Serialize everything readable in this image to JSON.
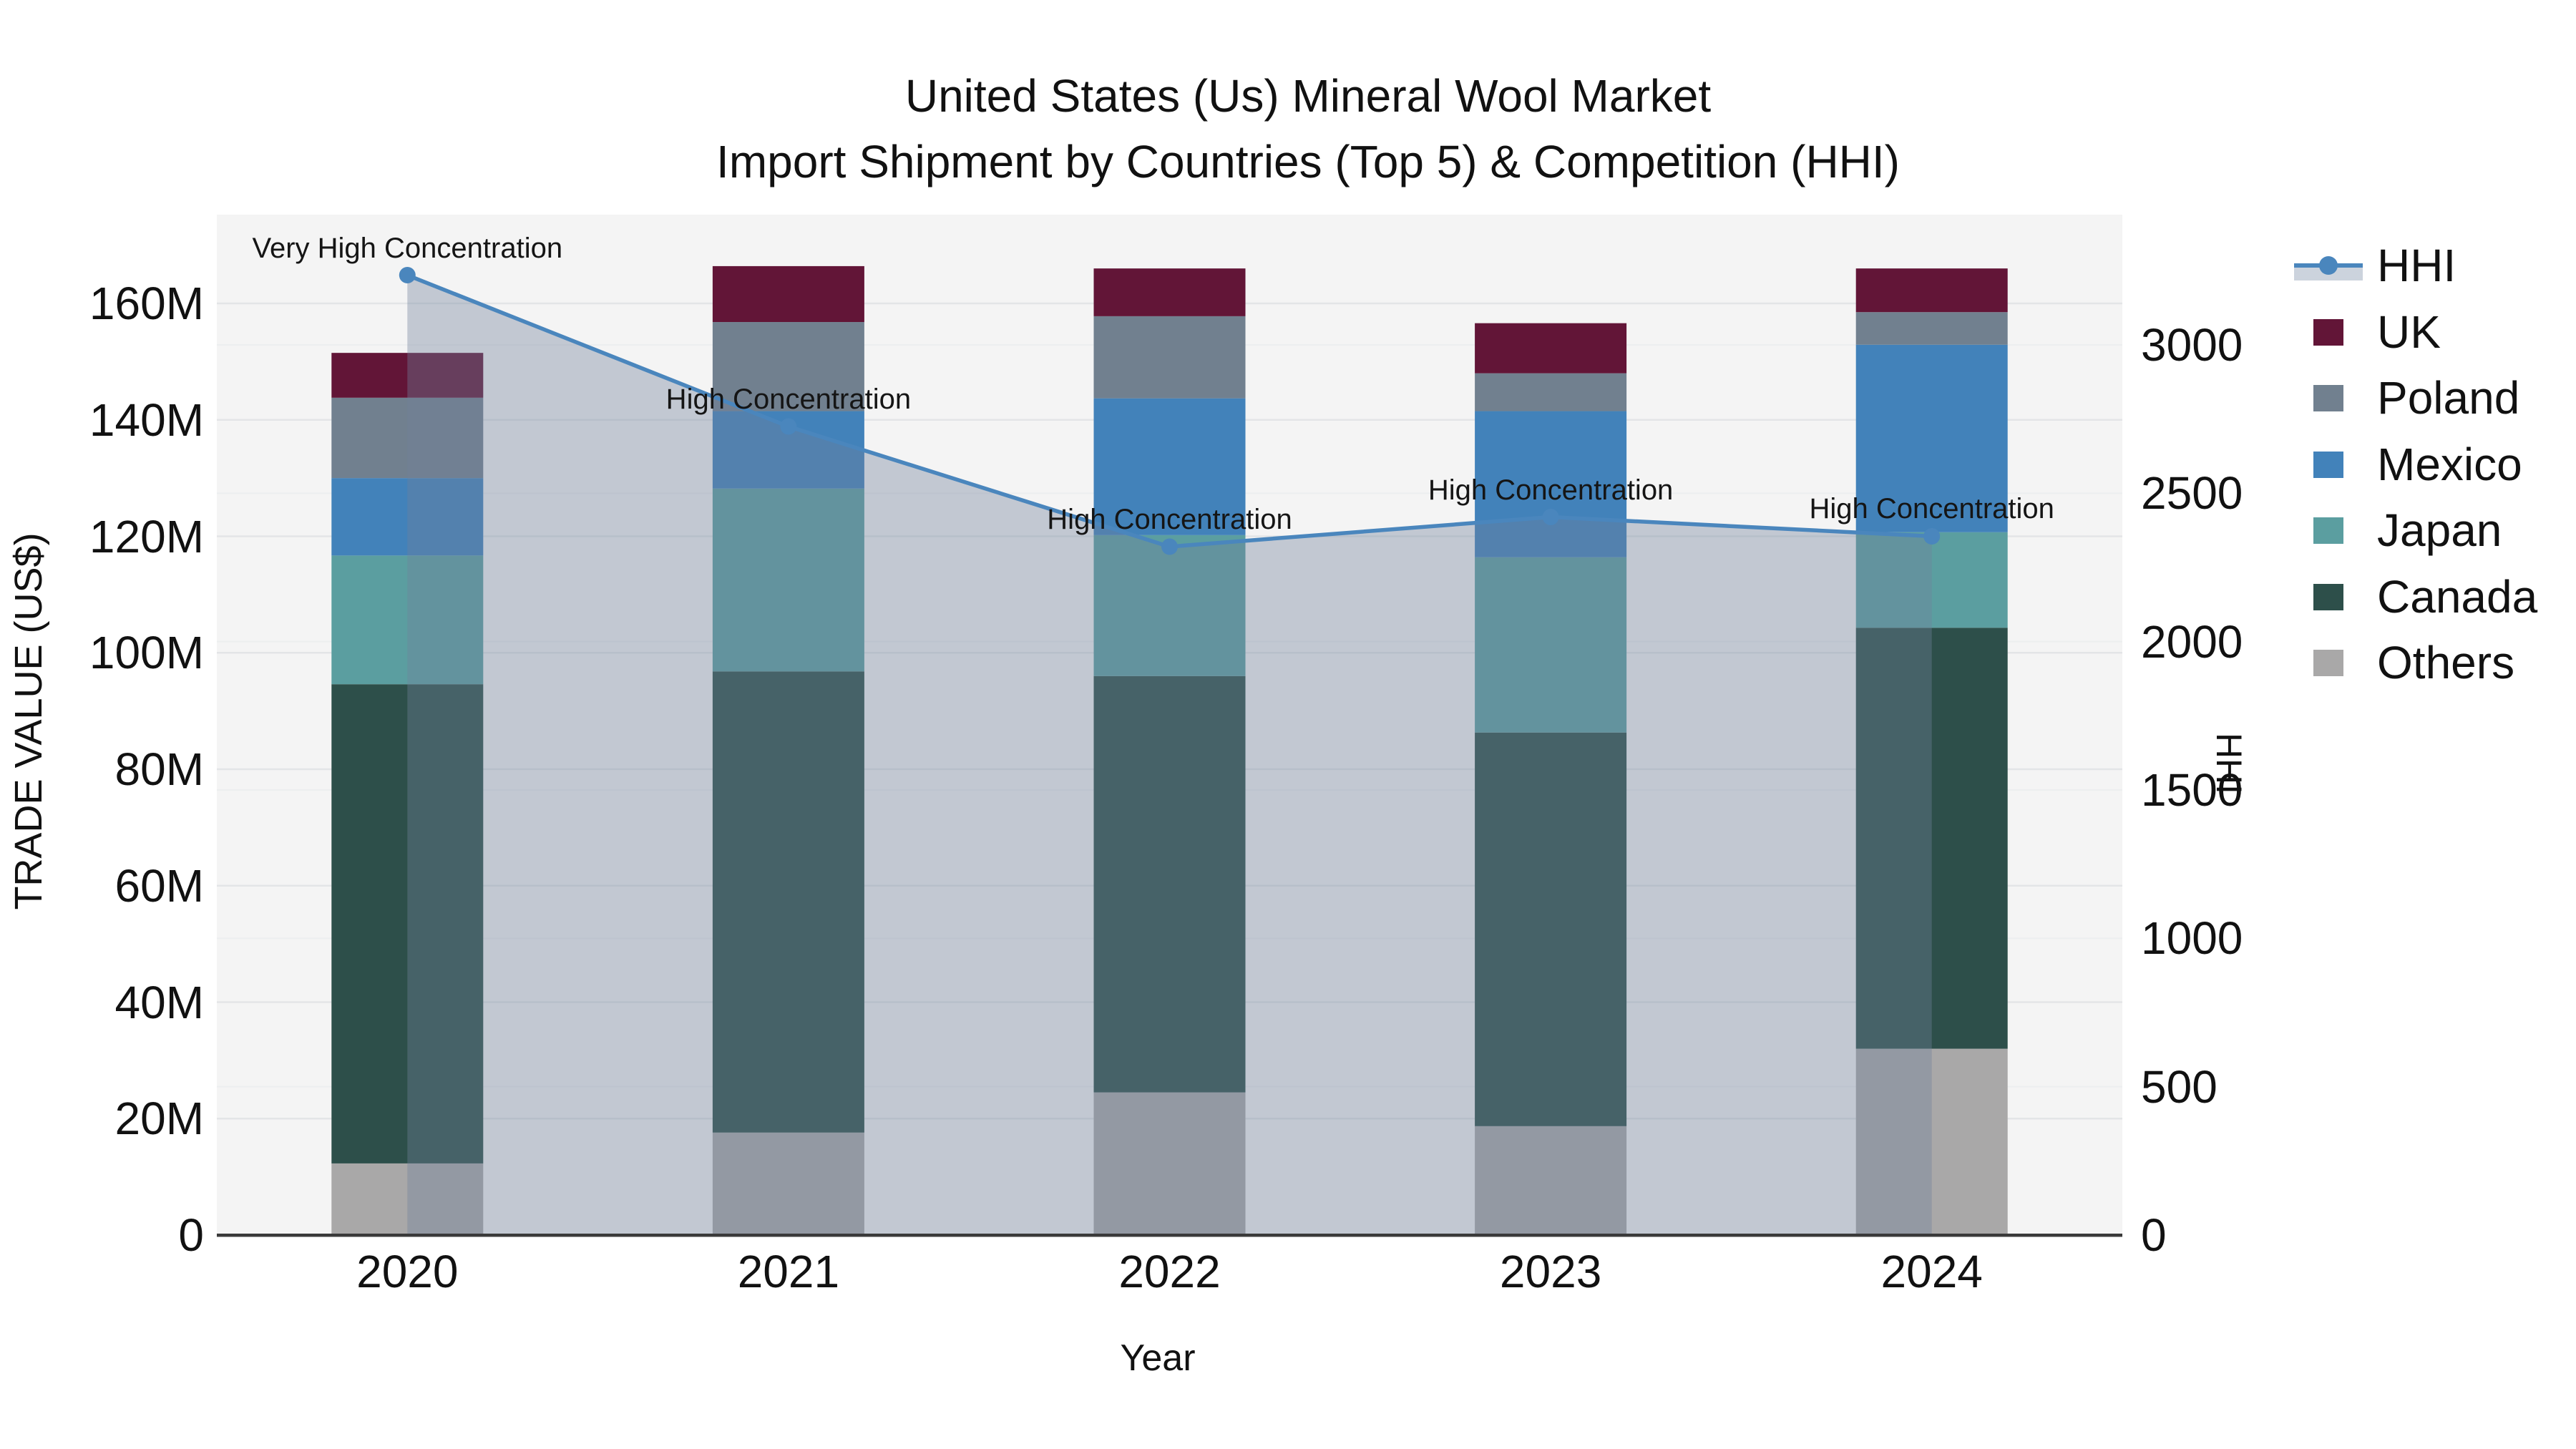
{
  "title": {
    "line1": "United States (Us) Mineral Wool Market",
    "line2": "Import Shipment by Countries (Top 5) & Competition (HHI)"
  },
  "axes": {
    "x_label": "Year",
    "y_left_label": "TRADE VALUE (US$)",
    "y_right_label": "HHI",
    "y_left_ticks": [
      {
        "label": "0",
        "value": 0
      },
      {
        "label": "20M",
        "value": 20
      },
      {
        "label": "40M",
        "value": 40
      },
      {
        "label": "60M",
        "value": 60
      },
      {
        "label": "80M",
        "value": 80
      },
      {
        "label": "100M",
        "value": 100
      },
      {
        "label": "120M",
        "value": 120
      },
      {
        "label": "140M",
        "value": 140
      },
      {
        "label": "160M",
        "value": 160
      }
    ],
    "y_right_ticks": [
      {
        "label": "0",
        "value": 0
      },
      {
        "label": "500",
        "value": 500
      },
      {
        "label": "1000",
        "value": 1000
      },
      {
        "label": "1500",
        "value": 1500
      },
      {
        "label": "2000",
        "value": 2000
      },
      {
        "label": "2500",
        "value": 2500
      },
      {
        "label": "3000",
        "value": 3000
      }
    ]
  },
  "chart_data": {
    "type": "stacked-bar+line",
    "categories": [
      "2020",
      "2021",
      "2022",
      "2023",
      "2024"
    ],
    "value_unit": "US$ millions (left axis), HHI index (right axis)",
    "ylim_left": [
      0,
      175
    ],
    "ylim_right": [
      0,
      3460
    ],
    "grid": true,
    "series": [
      {
        "name": "Others",
        "color": "#a9a8a8",
        "values": [
          12.3,
          17.6,
          24.5,
          18.7,
          32.0
        ]
      },
      {
        "name": "Canada",
        "color": "#2d4f4a",
        "values": [
          82.3,
          79.2,
          71.5,
          67.6,
          72.3
        ]
      },
      {
        "name": "Japan",
        "color": "#5b9ea0",
        "values": [
          22.1,
          31.4,
          24.2,
          30.1,
          16.4
        ]
      },
      {
        "name": "Mexico",
        "color": "#4282ba",
        "values": [
          13.3,
          13.3,
          23.5,
          25.1,
          32.2
        ]
      },
      {
        "name": "Poland",
        "color": "#71808f",
        "values": [
          13.8,
          15.3,
          14.1,
          6.5,
          5.6
        ]
      },
      {
        "name": "UK",
        "color": "#621537",
        "values": [
          7.7,
          9.6,
          8.2,
          8.6,
          7.5
        ]
      }
    ],
    "totals": [
      151.5,
      166.4,
      166.0,
      156.6,
      166.0
    ],
    "line": {
      "name": "HHI",
      "color": "#4a86bd",
      "area_color": "rgba(112,128,154,0.38)",
      "values": [
        3235,
        2725,
        2320,
        2420,
        2355
      ]
    },
    "annotations": [
      "Very High Concentration",
      "High Concentration",
      "High Concentration",
      "High Concentration",
      "High Concentration"
    ]
  },
  "legend": {
    "items": [
      {
        "label": "HHI",
        "type": "line",
        "color": "#4a86bd"
      },
      {
        "label": "UK",
        "type": "swatch",
        "color": "#621537"
      },
      {
        "label": "Poland",
        "type": "swatch",
        "color": "#71808f"
      },
      {
        "label": "Mexico",
        "type": "swatch",
        "color": "#4282ba"
      },
      {
        "label": "Japan",
        "type": "swatch",
        "color": "#5b9ea0"
      },
      {
        "label": "Canada",
        "type": "swatch",
        "color": "#2d4f4a"
      },
      {
        "label": "Others",
        "type": "swatch",
        "color": "#a9a8a8"
      }
    ]
  },
  "colors": {
    "plot_background": "#f4f4f4",
    "grid_major": "#e3e5e7",
    "grid_minor": "#eceeef",
    "axis_line": "#3a3a3a",
    "text": "#111111"
  }
}
